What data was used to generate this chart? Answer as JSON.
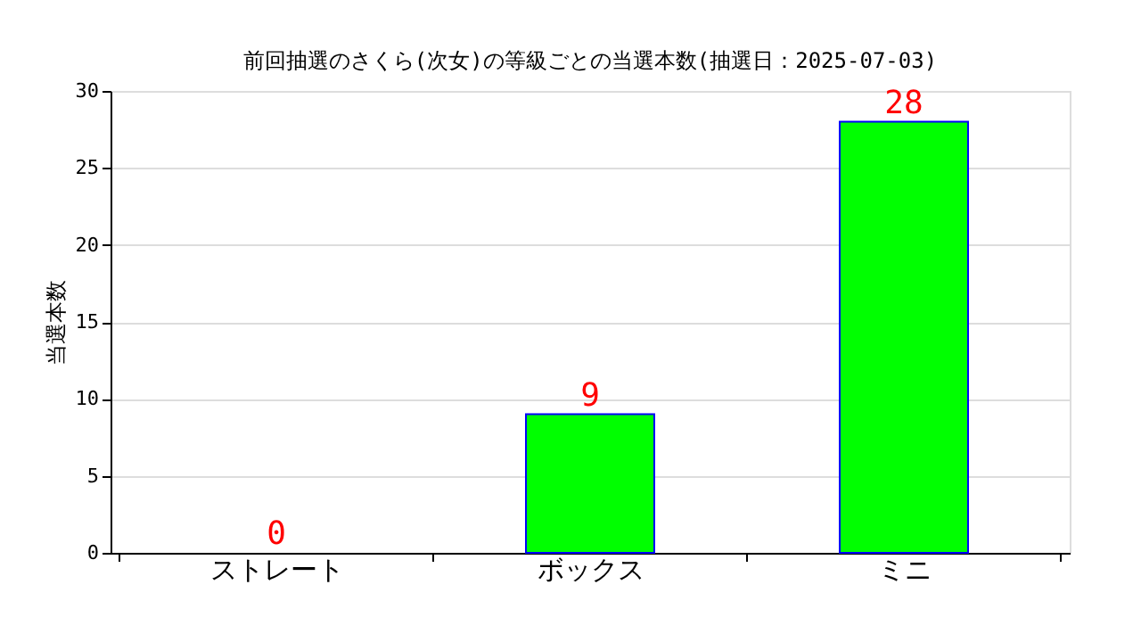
{
  "chart_data": {
    "type": "bar",
    "title": "前回抽選のさくら(次女)の等級ごとの当選本数(抽選日：2025-07-03)",
    "ylabel": "当選本数",
    "categories": [
      "ストレート",
      "ボックス",
      "ミニ"
    ],
    "series": [
      {
        "color": "#00ff00",
        "values": [
          0,
          9,
          28
        ]
      }
    ],
    "ylim": [
      0,
      30
    ],
    "yticks": [
      0,
      5,
      10,
      15,
      20,
      25,
      30
    ],
    "grid": "y",
    "data_labels": true
  }
}
